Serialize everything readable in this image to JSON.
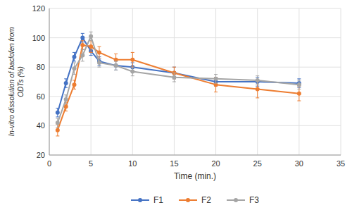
{
  "chart_data": {
    "type": "line",
    "x_label": "Time (min.)",
    "y_label": "In-vitro dissolution of baclofen from\nODTs (%)",
    "x": [
      1,
      2,
      3,
      4,
      5,
      6,
      8,
      10,
      15,
      20,
      25,
      30
    ],
    "series": [
      {
        "name": "F1",
        "color": "#4472C4",
        "values": [
          49,
          69,
          87,
          100,
          91,
          84,
          81,
          80,
          76,
          70,
          70,
          69
        ],
        "errors": [
          3,
          3,
          3,
          3,
          3,
          3,
          3,
          3,
          4,
          3,
          3,
          3
        ]
      },
      {
        "name": "F2",
        "color": "#ED7D31",
        "values": [
          37,
          53,
          68,
          95,
          94,
          90,
          85,
          85,
          76,
          68,
          65,
          62
        ],
        "errors": [
          4,
          3,
          3,
          3,
          4,
          4,
          4,
          5,
          4,
          5,
          6,
          5
        ]
      },
      {
        "name": "F3",
        "color": "#A5A5A5",
        "values": [
          42,
          58,
          79,
          88,
          101,
          83,
          81,
          77,
          73,
          72,
          71,
          68
        ],
        "errors": [
          3,
          3,
          4,
          4,
          3,
          3,
          3,
          3,
          3,
          3,
          3,
          3
        ]
      }
    ],
    "xlim": [
      0,
      35
    ],
    "ylim": [
      20,
      120
    ],
    "xticks": [
      0,
      5,
      10,
      15,
      20,
      25,
      30,
      35
    ],
    "yticks": [
      20,
      40,
      60,
      80,
      100,
      120
    ],
    "marker": "circle",
    "grid": true,
    "legend": "bottom"
  }
}
